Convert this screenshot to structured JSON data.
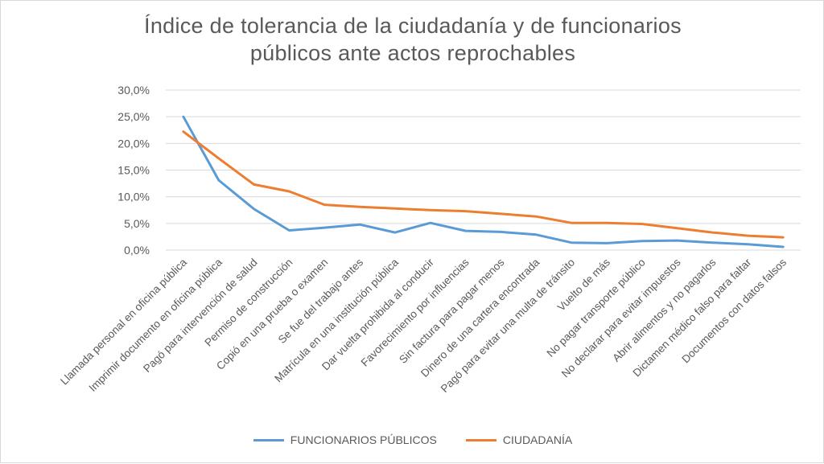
{
  "chart_data": {
    "type": "line",
    "title_lines": [
      "Índice de tolerancia de la ciudadanía y de funcionarios",
      "públicos ante actos reprochables"
    ],
    "categories": [
      "Llamada personal en oficina pública",
      "Imprimir documento en oficina pública",
      "Pagó para intervención de salud",
      "Permiso de construcción",
      "Copió en una prueba o examen",
      "Se fue del trabajo antes",
      "Matrícula en una institución pública",
      "Dar vuelta prohibida al conducir",
      "Favorecimiento por influencias",
      "Sin factura para pagar menos",
      "Dinero de una cartera encontrada",
      "Pagó para evitar una multa de tránsito",
      "Vuelto de más",
      "No pagar transporte público",
      "No declarar para evitar impuestos",
      "Abrir alimentos y no pagarlos",
      "Dictamen médico falso para faltar",
      "Documentos con datos falsos"
    ],
    "series": [
      {
        "name": "FUNCIONARIOS PÚBLICOS",
        "color": "#5b9bd5",
        "values": [
          25.0,
          13.1,
          7.7,
          3.7,
          4.2,
          4.8,
          3.3,
          5.1,
          3.6,
          3.4,
          2.9,
          1.4,
          1.3,
          1.7,
          1.8,
          1.4,
          1.1,
          0.6
        ]
      },
      {
        "name": "CIUDADANÍA",
        "color": "#ed7d31",
        "values": [
          22.2,
          17.2,
          12.3,
          11.0,
          8.5,
          8.1,
          7.8,
          7.5,
          7.3,
          6.8,
          6.3,
          5.1,
          5.1,
          4.9,
          4.1,
          3.3,
          2.7,
          2.4
        ]
      }
    ],
    "y_ticks": [
      "0,0%",
      "5,0%",
      "10,0%",
      "15,0%",
      "20,0%",
      "25,0%",
      "30,0%"
    ],
    "ylim": [
      0,
      30
    ],
    "grid": true,
    "legend_position": "bottom"
  }
}
